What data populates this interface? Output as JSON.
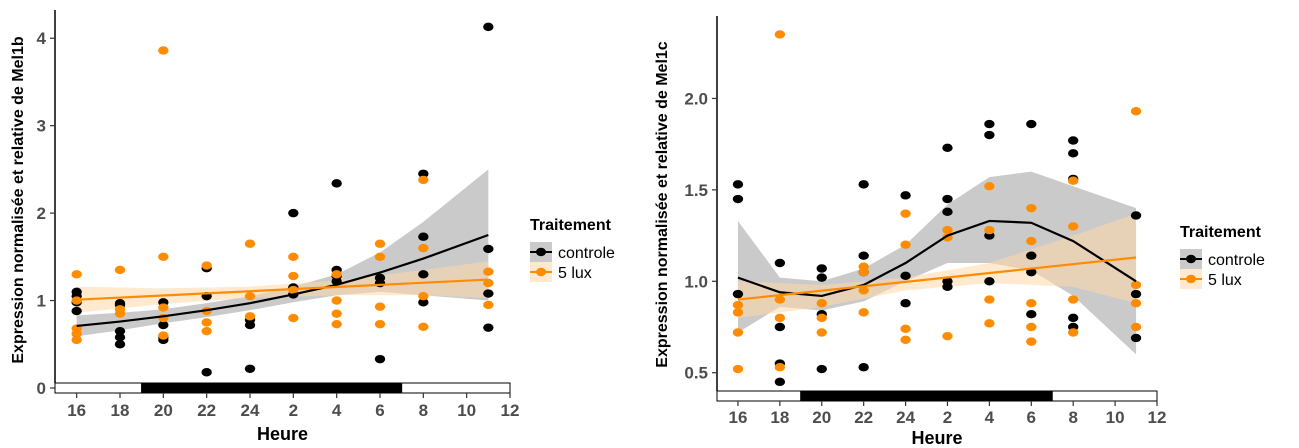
{
  "chart_data": [
    {
      "type": "scatter",
      "xlabel": "Heure",
      "ylabel": "Expression normalisée et relative de Mel1b",
      "xlim": [
        15,
        36
      ],
      "ylim": [
        0,
        4.3
      ],
      "x_ticks": [
        16,
        18,
        20,
        22,
        24,
        26,
        28,
        30,
        32,
        34,
        36
      ],
      "x_tick_labels": [
        "16",
        "18",
        "20",
        "22",
        "24",
        "2",
        "4",
        "6",
        "8",
        "10",
        "12"
      ],
      "y_ticks": [
        0,
        1,
        2,
        3,
        4
      ],
      "y_tick_labels": [
        "0",
        "1",
        "2",
        "3",
        "4"
      ],
      "light_dark_bar": [
        {
          "from": 15,
          "to": 19,
          "color": "#ffffff"
        },
        {
          "from": 19,
          "to": 31,
          "color": "#000000"
        },
        {
          "from": 31,
          "to": 36,
          "color": "#ffffff"
        }
      ],
      "legend": {
        "title": "Traitement",
        "position": "right",
        "entries": [
          "controle",
          "5 lux"
        ]
      },
      "series": [
        {
          "name": "controle",
          "color": "#000000",
          "band_color": "#9e9e9e",
          "points": [
            [
              16,
              0.88
            ],
            [
              16,
              0.98
            ],
            [
              16,
              1.05
            ],
            [
              16,
              1.1
            ],
            [
              18,
              0.5
            ],
            [
              18,
              0.58
            ],
            [
              18,
              0.65
            ],
            [
              18,
              0.95
            ],
            [
              18,
              0.97
            ],
            [
              20,
              0.55
            ],
            [
              20,
              0.58
            ],
            [
              20,
              0.72
            ],
            [
              20,
              0.98
            ],
            [
              22,
              0.18
            ],
            [
              22,
              1.05
            ],
            [
              22,
              1.37
            ],
            [
              24,
              0.22
            ],
            [
              24,
              0.72
            ],
            [
              24,
              0.78
            ],
            [
              26,
              1.07
            ],
            [
              26,
              1.15
            ],
            [
              26,
              2.0
            ],
            [
              28,
              1.22
            ],
            [
              28,
              1.28
            ],
            [
              28,
              1.35
            ],
            [
              28,
              2.34
            ],
            [
              30,
              0.33
            ],
            [
              30,
              1.2
            ],
            [
              30,
              1.26
            ],
            [
              32,
              0.98
            ],
            [
              32,
              1.3
            ],
            [
              32,
              1.73
            ],
            [
              32,
              2.45
            ],
            [
              35,
              0.69
            ],
            [
              35,
              1.08
            ],
            [
              35,
              1.59
            ],
            [
              35,
              4.13
            ]
          ],
          "trend": [
            [
              16,
              0.71
            ],
            [
              18,
              0.76
            ],
            [
              20,
              0.82
            ],
            [
              22,
              0.89
            ],
            [
              24,
              0.97
            ],
            [
              26,
              1.07
            ],
            [
              28,
              1.18
            ],
            [
              30,
              1.32
            ],
            [
              32,
              1.48
            ],
            [
              35,
              1.75
            ]
          ],
          "band_upper": [
            [
              16,
              0.83
            ],
            [
              18,
              0.86
            ],
            [
              20,
              0.9
            ],
            [
              22,
              0.97
            ],
            [
              24,
              1.05
            ],
            [
              26,
              1.16
            ],
            [
              28,
              1.3
            ],
            [
              30,
              1.55
            ],
            [
              32,
              1.9
            ],
            [
              35,
              2.5
            ]
          ],
          "band_lower": [
            [
              16,
              0.59
            ],
            [
              18,
              0.66
            ],
            [
              20,
              0.74
            ],
            [
              22,
              0.81
            ],
            [
              24,
              0.89
            ],
            [
              26,
              0.98
            ],
            [
              28,
              1.06
            ],
            [
              30,
              1.1
            ],
            [
              32,
              1.06
            ],
            [
              35,
              1.0
            ]
          ]
        },
        {
          "name": "5 lux",
          "color": "#ff8c00",
          "band_color": "#ffd9a8",
          "points": [
            [
              16,
              0.55
            ],
            [
              16,
              0.62
            ],
            [
              16,
              0.68
            ],
            [
              16,
              1.0
            ],
            [
              16,
              1.3
            ],
            [
              18,
              0.85
            ],
            [
              18,
              0.9
            ],
            [
              18,
              1.35
            ],
            [
              20,
              0.6
            ],
            [
              20,
              0.8
            ],
            [
              20,
              0.92
            ],
            [
              20,
              1.5
            ],
            [
              20,
              3.86
            ],
            [
              22,
              0.65
            ],
            [
              22,
              0.75
            ],
            [
              22,
              0.88
            ],
            [
              22,
              1.4
            ],
            [
              24,
              0.82
            ],
            [
              24,
              1.05
            ],
            [
              24,
              1.65
            ],
            [
              26,
              0.8
            ],
            [
              26,
              1.12
            ],
            [
              26,
              1.28
            ],
            [
              26,
              1.5
            ],
            [
              28,
              0.73
            ],
            [
              28,
              0.85
            ],
            [
              28,
              1.0
            ],
            [
              28,
              1.3
            ],
            [
              30,
              0.73
            ],
            [
              30,
              0.93
            ],
            [
              30,
              1.5
            ],
            [
              30,
              1.65
            ],
            [
              32,
              0.7
            ],
            [
              32,
              1.05
            ],
            [
              32,
              1.6
            ],
            [
              32,
              2.38
            ],
            [
              35,
              0.95
            ],
            [
              35,
              1.2
            ],
            [
              35,
              1.33
            ]
          ],
          "trend": [
            [
              16,
              1.01
            ],
            [
              35,
              1.24
            ]
          ],
          "band_upper": [
            [
              16,
              1.16
            ],
            [
              20,
              1.14
            ],
            [
              24,
              1.16
            ],
            [
              28,
              1.23
            ],
            [
              32,
              1.35
            ],
            [
              35,
              1.45
            ]
          ],
          "band_lower": [
            [
              16,
              0.86
            ],
            [
              20,
              0.96
            ],
            [
              24,
              1.03
            ],
            [
              28,
              1.06
            ],
            [
              32,
              1.06
            ],
            [
              35,
              1.03
            ]
          ]
        }
      ]
    },
    {
      "type": "scatter",
      "xlabel": "Heure",
      "ylabel": "Expression normalisée et relative de Mel1c",
      "xlim": [
        15,
        36
      ],
      "ylim": [
        0.4,
        2.44
      ],
      "x_ticks": [
        16,
        18,
        20,
        22,
        24,
        26,
        28,
        30,
        32,
        34,
        36
      ],
      "x_tick_labels": [
        "16",
        "18",
        "20",
        "22",
        "24",
        "2",
        "4",
        "6",
        "8",
        "10",
        "12"
      ],
      "y_ticks": [
        0.5,
        1.0,
        1.5,
        2.0
      ],
      "y_tick_labels": [
        "0.5",
        "1.0",
        "1.5",
        "2.0"
      ],
      "light_dark_bar": [
        {
          "from": 15,
          "to": 19,
          "color": "#ffffff"
        },
        {
          "from": 19,
          "to": 31,
          "color": "#000000"
        },
        {
          "from": 31,
          "to": 36,
          "color": "#ffffff"
        }
      ],
      "legend": {
        "title": "Traitement",
        "position": "right",
        "entries": [
          "controle",
          "5 lux"
        ]
      },
      "series": [
        {
          "name": "controle",
          "color": "#000000",
          "band_color": "#9e9e9e",
          "points": [
            [
              16,
              0.93
            ],
            [
              16,
              1.45
            ],
            [
              16,
              1.53
            ],
            [
              18,
              0.45
            ],
            [
              18,
              0.55
            ],
            [
              18,
              0.75
            ],
            [
              18,
              1.1
            ],
            [
              20,
              0.52
            ],
            [
              20,
              0.82
            ],
            [
              20,
              1.02
            ],
            [
              20,
              1.07
            ],
            [
              22,
              0.53
            ],
            [
              22,
              1.05
            ],
            [
              22,
              1.14
            ],
            [
              22,
              1.53
            ],
            [
              24,
              0.88
            ],
            [
              24,
              1.03
            ],
            [
              24,
              1.47
            ],
            [
              26,
              0.97
            ],
            [
              26,
              1.0
            ],
            [
              26,
              1.38
            ],
            [
              26,
              1.45
            ],
            [
              26,
              1.73
            ],
            [
              28,
              1.0
            ],
            [
              28,
              1.25
            ],
            [
              28,
              1.8
            ],
            [
              28,
              1.86
            ],
            [
              30,
              0.82
            ],
            [
              30,
              1.05
            ],
            [
              30,
              1.14
            ],
            [
              30,
              1.86
            ],
            [
              32,
              0.75
            ],
            [
              32,
              0.8
            ],
            [
              32,
              1.56
            ],
            [
              32,
              1.7
            ],
            [
              32,
              1.77
            ],
            [
              35,
              0.69
            ],
            [
              35,
              0.93
            ],
            [
              35,
              1.36
            ]
          ],
          "trend": [
            [
              16,
              1.02
            ],
            [
              18,
              0.94
            ],
            [
              20,
              0.92
            ],
            [
              22,
              0.98
            ],
            [
              24,
              1.1
            ],
            [
              26,
              1.25
            ],
            [
              28,
              1.33
            ],
            [
              30,
              1.32
            ],
            [
              32,
              1.22
            ],
            [
              35,
              1.0
            ]
          ],
          "band_upper": [
            [
              16,
              1.33
            ],
            [
              18,
              1.02
            ],
            [
              20,
              1.0
            ],
            [
              22,
              1.07
            ],
            [
              24,
              1.2
            ],
            [
              26,
              1.42
            ],
            [
              28,
              1.57
            ],
            [
              30,
              1.6
            ],
            [
              32,
              1.52
            ],
            [
              35,
              1.4
            ]
          ],
          "band_lower": [
            [
              16,
              0.72
            ],
            [
              18,
              0.86
            ],
            [
              20,
              0.84
            ],
            [
              22,
              0.89
            ],
            [
              24,
              1.0
            ],
            [
              26,
              1.1
            ],
            [
              28,
              1.1
            ],
            [
              30,
              1.06
            ],
            [
              32,
              0.92
            ],
            [
              35,
              0.6
            ]
          ]
        },
        {
          "name": "5 lux",
          "color": "#ff8c00",
          "band_color": "#ffd9a8",
          "points": [
            [
              16,
              0.52
            ],
            [
              16,
              0.72
            ],
            [
              16,
              0.83
            ],
            [
              16,
              0.87
            ],
            [
              18,
              0.53
            ],
            [
              18,
              0.8
            ],
            [
              18,
              0.9
            ],
            [
              18,
              2.35
            ],
            [
              20,
              0.72
            ],
            [
              20,
              0.8
            ],
            [
              20,
              0.88
            ],
            [
              22,
              0.83
            ],
            [
              22,
              0.95
            ],
            [
              22,
              1.05
            ],
            [
              22,
              1.08
            ],
            [
              24,
              0.68
            ],
            [
              24,
              0.74
            ],
            [
              24,
              1.2
            ],
            [
              24,
              1.37
            ],
            [
              26,
              0.7
            ],
            [
              26,
              1.24
            ],
            [
              26,
              1.28
            ],
            [
              28,
              0.77
            ],
            [
              28,
              0.9
            ],
            [
              28,
              1.28
            ],
            [
              28,
              1.52
            ],
            [
              30,
              0.67
            ],
            [
              30,
              0.75
            ],
            [
              30,
              0.88
            ],
            [
              30,
              1.22
            ],
            [
              30,
              1.4
            ],
            [
              32,
              0.72
            ],
            [
              32,
              0.9
            ],
            [
              32,
              1.3
            ],
            [
              32,
              1.55
            ],
            [
              35,
              0.75
            ],
            [
              35,
              0.88
            ],
            [
              35,
              0.98
            ],
            [
              35,
              1.93
            ]
          ],
          "trend": [
            [
              16,
              0.9
            ],
            [
              35,
              1.13
            ]
          ],
          "band_upper": [
            [
              16,
              1.0
            ],
            [
              20,
              0.98
            ],
            [
              24,
              1.02
            ],
            [
              28,
              1.1
            ],
            [
              32,
              1.25
            ],
            [
              35,
              1.37
            ]
          ],
          "band_lower": [
            [
              16,
              0.8
            ],
            [
              20,
              0.86
            ],
            [
              24,
              0.95
            ],
            [
              28,
              0.99
            ],
            [
              32,
              0.97
            ],
            [
              35,
              0.88
            ]
          ]
        }
      ]
    }
  ]
}
